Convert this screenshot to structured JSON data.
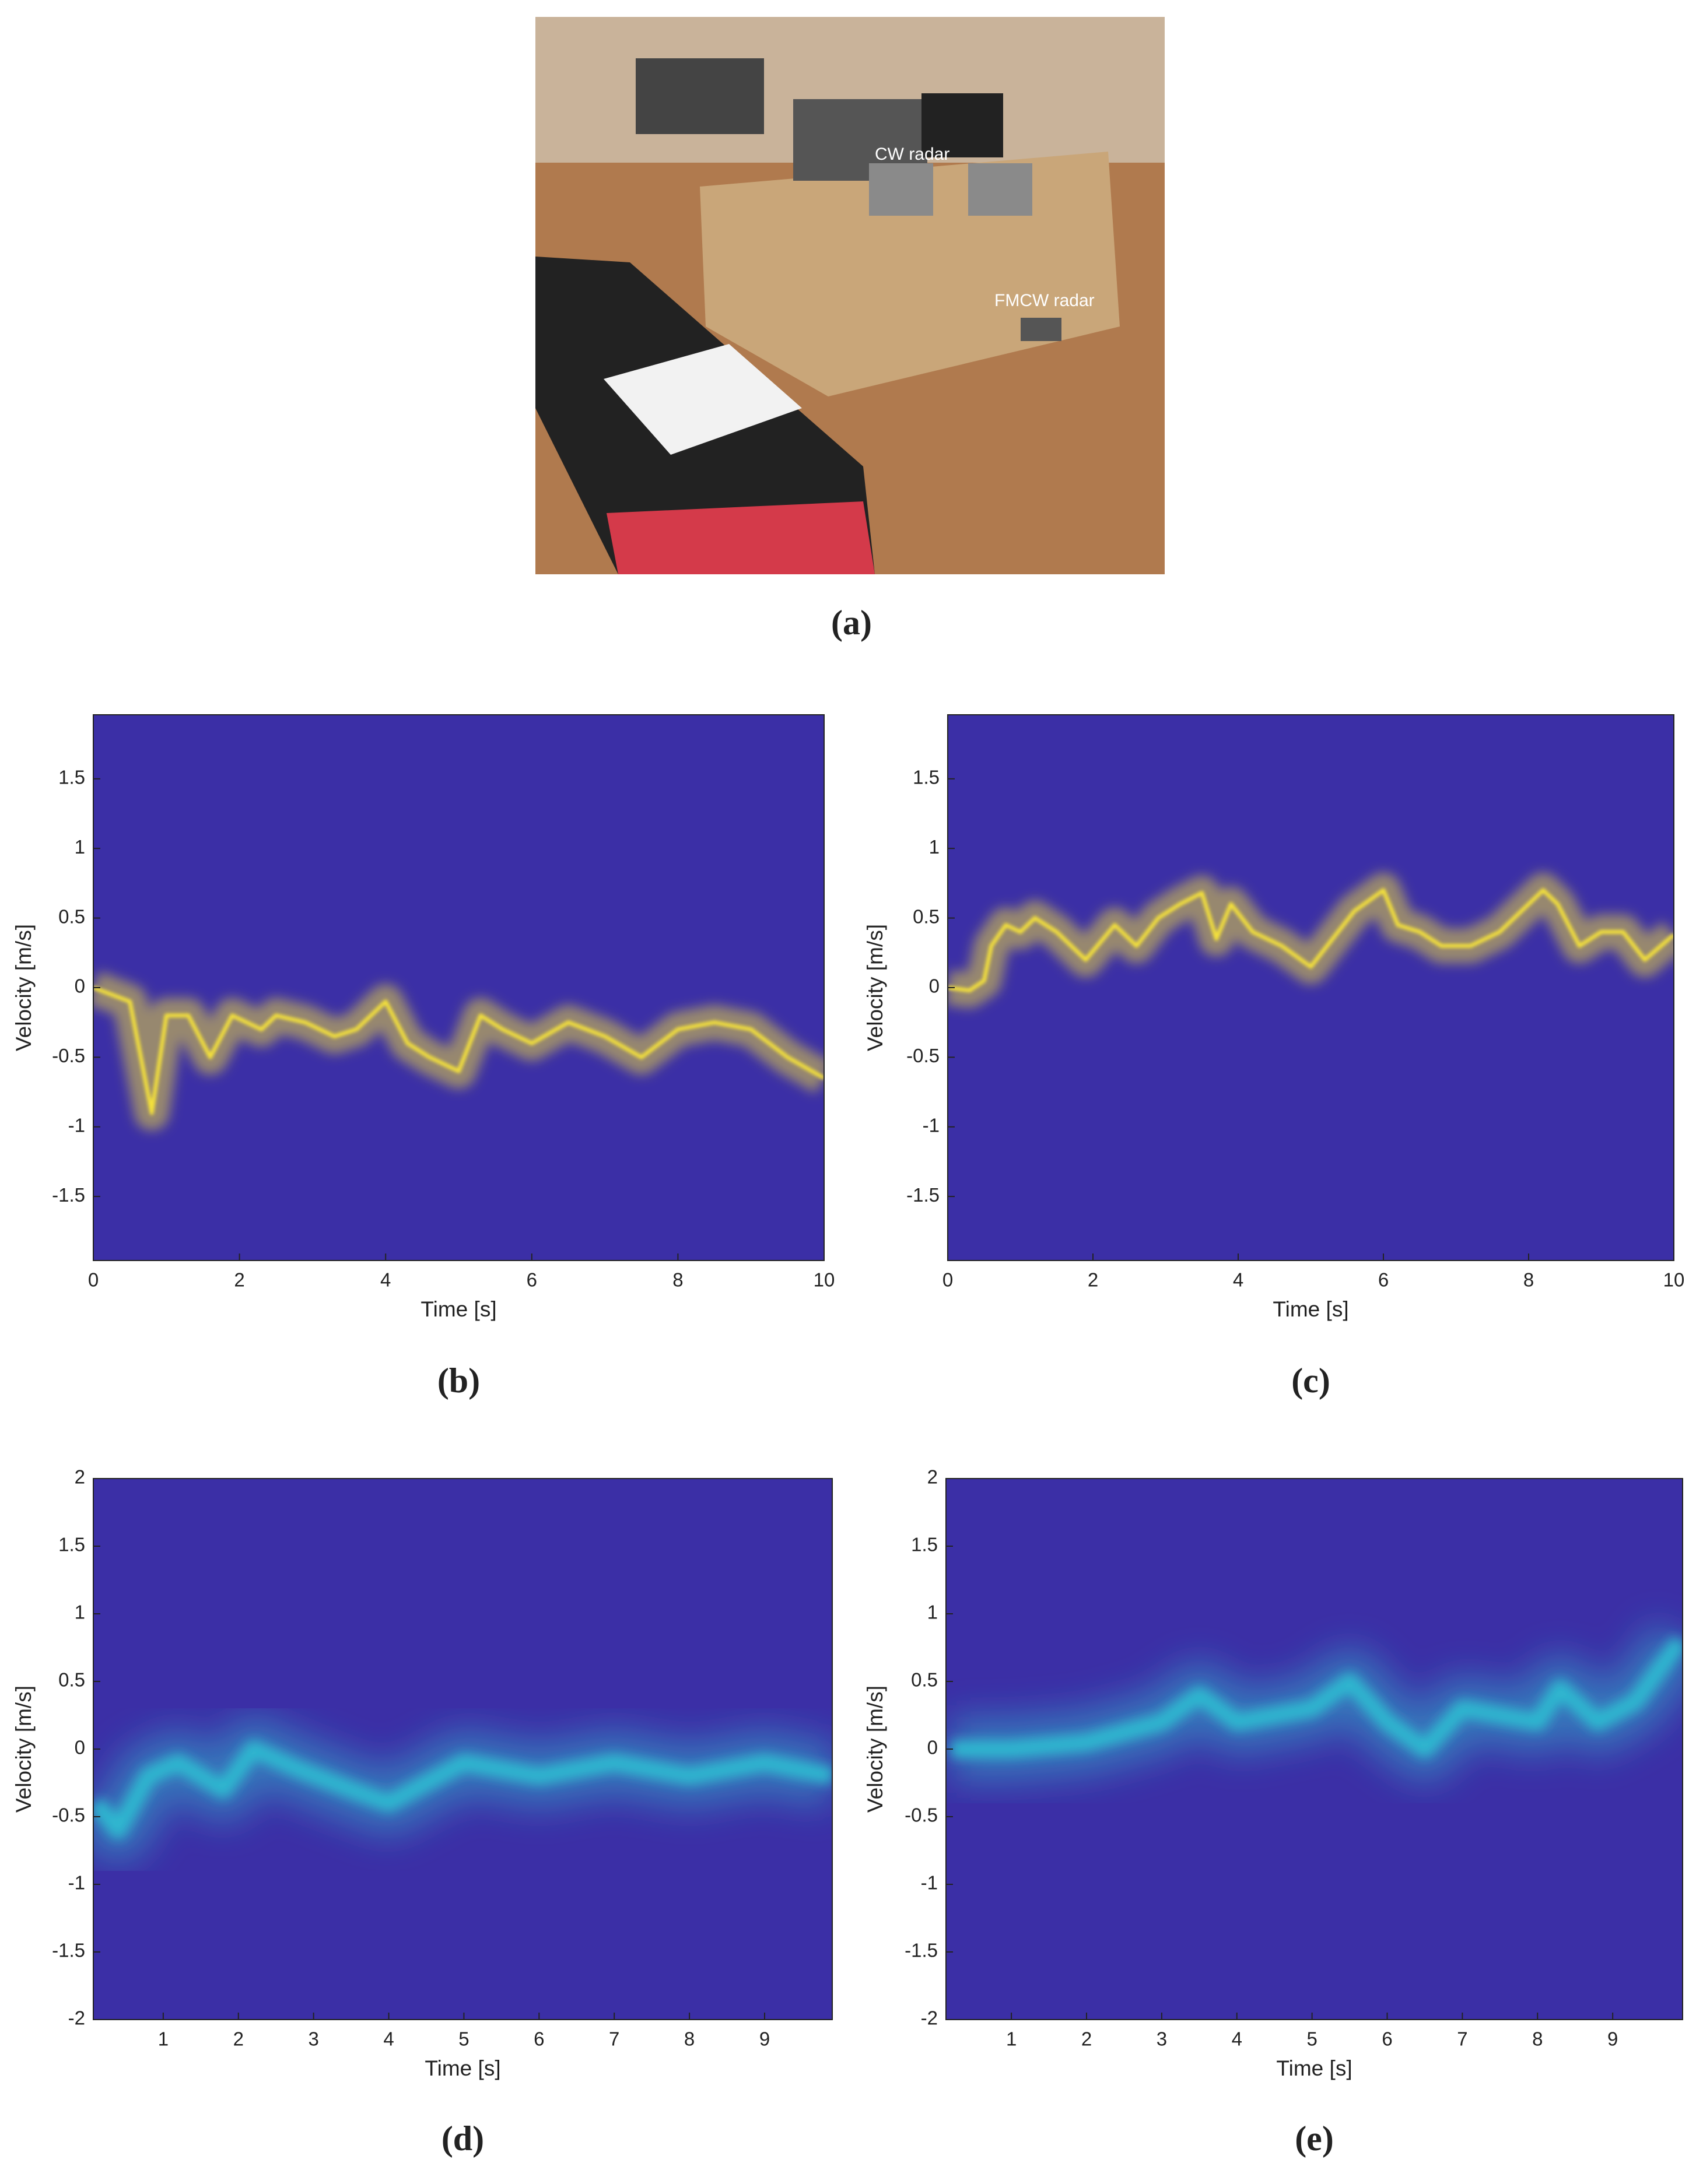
{
  "photo": {
    "labels": [
      "CW radar",
      "FMCW radar"
    ],
    "caption": "(a)"
  },
  "chart_data": [
    {
      "type": "spectrogram",
      "caption": "(b)",
      "xlabel": "Time [s]",
      "ylabel": "Velocity [m/s]",
      "xlim": [
        0,
        10
      ],
      "ylim": [
        -1.96,
        1.96
      ],
      "xticks": [
        0,
        2,
        4,
        6,
        8,
        10
      ],
      "yticks": [
        -1.5,
        -1,
        -0.5,
        0,
        0.5,
        1,
        1.5
      ],
      "background": "#3b2fa6",
      "series": [
        {
          "color": "#f4e13a",
          "x": [
            0,
            0.5,
            0.8,
            1,
            1.3,
            1.6,
            1.9,
            2.3,
            2.5,
            2.9,
            3.3,
            3.6,
            4,
            4.3,
            4.6,
            5,
            5.3,
            5.6,
            6,
            6.5,
            7,
            7.5,
            8,
            8.5,
            9,
            9.5,
            10
          ],
          "values": [
            0,
            -0.1,
            -0.9,
            -0.2,
            -0.2,
            -0.5,
            -0.2,
            -0.3,
            -0.2,
            -0.25,
            -0.35,
            -0.3,
            -0.1,
            -0.4,
            -0.5,
            -0.6,
            -0.2,
            -0.3,
            -0.4,
            -0.25,
            -0.35,
            -0.5,
            -0.3,
            -0.25,
            -0.3,
            -0.5,
            -0.65
          ]
        }
      ]
    },
    {
      "type": "spectrogram",
      "caption": "(c)",
      "xlabel": "Time [s]",
      "ylabel": "Velocity [m/s]",
      "xlim": [
        0,
        10
      ],
      "ylim": [
        -1.96,
        1.96
      ],
      "xticks": [
        0,
        2,
        4,
        6,
        8,
        10
      ],
      "yticks": [
        -1.5,
        -1,
        -0.5,
        0,
        0.5,
        1,
        1.5
      ],
      "background": "#3b2fa6",
      "series": [
        {
          "color": "#f4e13a",
          "x": [
            0,
            0.3,
            0.5,
            0.6,
            0.8,
            1,
            1.2,
            1.5,
            1.9,
            2.3,
            2.6,
            2.9,
            3.2,
            3.5,
            3.7,
            3.9,
            4.2,
            4.6,
            5,
            5.3,
            5.6,
            6,
            6.2,
            6.5,
            6.8,
            7.2,
            7.6,
            7.8,
            8.2,
            8.4,
            8.7,
            9,
            9.3,
            9.6,
            10
          ],
          "values": [
            0,
            -0.02,
            0.05,
            0.3,
            0.45,
            0.4,
            0.5,
            0.4,
            0.2,
            0.45,
            0.3,
            0.5,
            0.6,
            0.68,
            0.35,
            0.6,
            0.4,
            0.3,
            0.15,
            0.35,
            0.55,
            0.7,
            0.45,
            0.4,
            0.3,
            0.3,
            0.4,
            0.5,
            0.7,
            0.6,
            0.3,
            0.4,
            0.4,
            0.2,
            0.38
          ]
        }
      ]
    },
    {
      "type": "spectrogram",
      "caption": "(d)",
      "xlabel": "Time [s]",
      "ylabel": "Velocity [m/s]",
      "xlim": [
        0.07,
        9.9
      ],
      "ylim": [
        -2,
        2
      ],
      "xticks": [
        1,
        2,
        3,
        4,
        5,
        6,
        7,
        8,
        9
      ],
      "yticks": [
        -2,
        -1.5,
        -1,
        -0.5,
        0,
        0.5,
        1,
        1.5,
        2
      ],
      "background": "#3b2fa6",
      "series": [
        {
          "color": "#2fb8d0",
          "x": [
            0.1,
            0.4,
            0.8,
            1.2,
            1.8,
            2.2,
            2.8,
            3.5,
            4,
            5,
            6,
            7,
            8,
            9,
            9.9
          ],
          "values": [
            -0.4,
            -0.6,
            -0.2,
            -0.1,
            -0.3,
            0,
            -0.15,
            -0.3,
            -0.4,
            -0.1,
            -0.2,
            -0.1,
            -0.2,
            -0.1,
            -0.2
          ]
        }
      ]
    },
    {
      "type": "spectrogram",
      "caption": "(e)",
      "xlabel": "Time [s]",
      "ylabel": "Velocity [m/s]",
      "xlim": [
        0.13,
        9.93
      ],
      "ylim": [
        -2,
        2
      ],
      "xticks": [
        1,
        2,
        3,
        4,
        5,
        6,
        7,
        8,
        9
      ],
      "yticks": [
        -2,
        -1.5,
        -1,
        -0.5,
        0,
        0.5,
        1,
        1.5,
        2
      ],
      "background": "#3b2fa6",
      "series": [
        {
          "color": "#2fb8d0",
          "x": [
            0.2,
            1,
            2,
            3,
            3.5,
            4,
            5,
            5.5,
            6,
            6.5,
            7,
            8,
            8.3,
            8.8,
            9.3,
            9.9
          ],
          "values": [
            0,
            0,
            0.05,
            0.2,
            0.4,
            0.2,
            0.3,
            0.5,
            0.2,
            0,
            0.3,
            0.2,
            0.45,
            0.2,
            0.35,
            0.8
          ]
        }
      ]
    }
  ]
}
